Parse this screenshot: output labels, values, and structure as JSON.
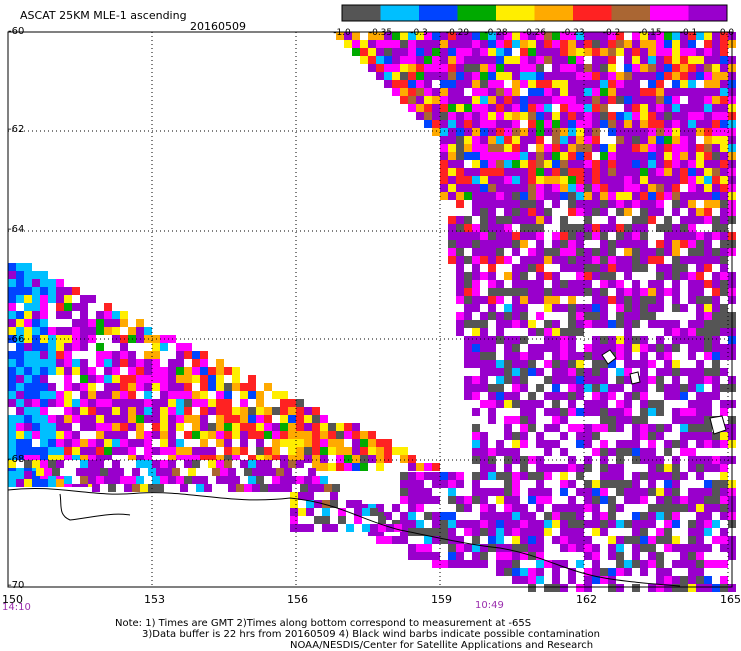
{
  "title": "ASCAT 25KM MLE-1 ascending",
  "date": "20160509",
  "colorbar": {
    "labels": [
      "-1.0",
      "-0.35",
      "-0.3",
      "-0.29",
      "-0.28",
      "-0.26",
      "-0.23",
      "-0.2",
      "-0.15",
      "-0.1",
      "0.0"
    ],
    "colors": [
      "#555555",
      "#00bfff",
      "#0044ff",
      "#00aa00",
      "#ffee00",
      "#ffaa00",
      "#ff2222",
      "#aa6633",
      "#ff00ff",
      "#9900cc"
    ]
  },
  "axes": {
    "lat_labels": [
      "-60",
      "-62",
      "-64",
      "-66",
      "-68",
      "-70"
    ],
    "lon_labels": [
      "150",
      "153",
      "156",
      "159",
      "162",
      "165"
    ]
  },
  "times": {
    "left": "14:10",
    "right": "10:49"
  },
  "notes": [
    "Note: 1) Times are GMT 2)Times along bottom correspond to measurement at -65S",
    "3)Data buffer is 22 hrs from 20160509 4) Black wind barbs indicate possible contamination",
    "NOAA/NESDIS/Center for Satellite Applications and Research"
  ]
}
